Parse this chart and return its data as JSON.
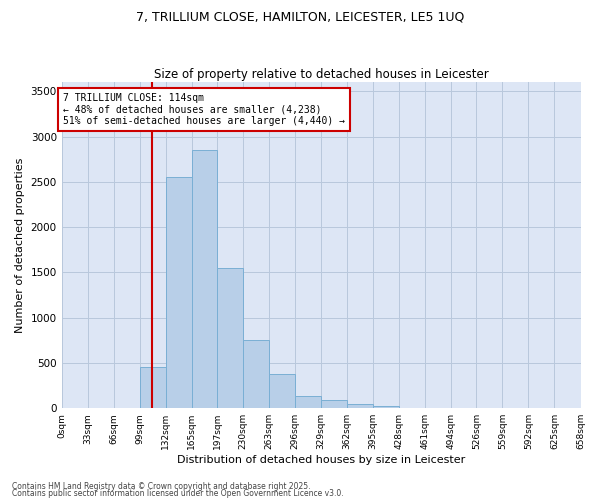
{
  "title": "7, TRILLIUM CLOSE, HAMILTON, LEICESTER, LE5 1UQ",
  "subtitle": "Size of property relative to detached houses in Leicester",
  "xlabel": "Distribution of detached houses by size in Leicester",
  "ylabel": "Number of detached properties",
  "bar_color": "#b8cfe8",
  "bar_edge_color": "#7aafd4",
  "bg_color": "#dde6f5",
  "grid_color": "#b8c8dc",
  "vline_color": "#cc0000",
  "vline_x": 114,
  "bin_edges": [
    0,
    33,
    66,
    99,
    132,
    165,
    197,
    230,
    263,
    296,
    329,
    362,
    395,
    428,
    461,
    494,
    526,
    559,
    592,
    625,
    658
  ],
  "bar_heights": [
    0,
    0,
    0,
    450,
    2550,
    2850,
    1550,
    750,
    380,
    140,
    90,
    50,
    20,
    5,
    3,
    2,
    1,
    1,
    0,
    0
  ],
  "ylim": [
    0,
    3600
  ],
  "yticks": [
    0,
    500,
    1000,
    1500,
    2000,
    2500,
    3000,
    3500
  ],
  "annotation_text": "7 TRILLIUM CLOSE: 114sqm\n← 48% of detached houses are smaller (4,238)\n51% of semi-detached houses are larger (4,440) →",
  "annotation_box_color": "#ffffff",
  "annotation_box_edge": "#cc0000",
  "footer_line1": "Contains HM Land Registry data © Crown copyright and database right 2025.",
  "footer_line2": "Contains public sector information licensed under the Open Government Licence v3.0."
}
